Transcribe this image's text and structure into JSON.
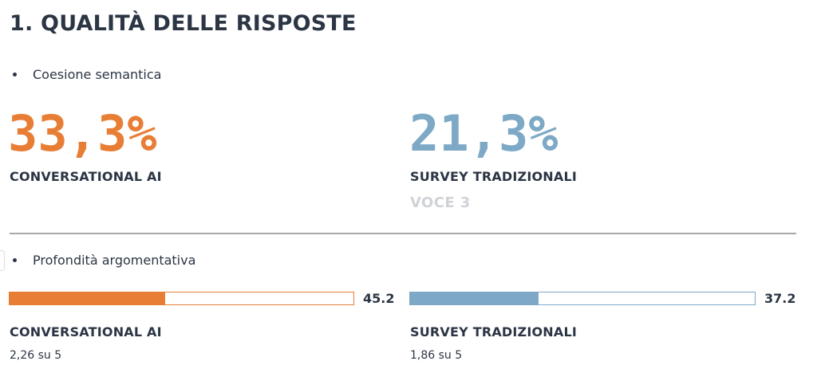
{
  "title": "1. QUALITÀ DELLE RISPOSTE",
  "colors": {
    "orange": "#e87e35",
    "blue": "#7ea9c6",
    "text": "#2b3544",
    "muted": "#cfd2d6"
  },
  "section1": {
    "bullet": "Coesione semantica",
    "left": {
      "value": "33,3%",
      "label": "CONVERSATIONAL AI"
    },
    "right": {
      "value": "21,3%",
      "label": "SURVEY TRADIZIONALI",
      "extra": "VOCE 3"
    }
  },
  "section2": {
    "bullet": "Profondità argomentativa",
    "left": {
      "bar_value": "45.2",
      "bar_fill_percent": 45.2,
      "label": "CONVERSATIONAL AI",
      "score": "2,26 su 5"
    },
    "right": {
      "bar_value": "37.2",
      "bar_fill_percent": 37.2,
      "label": "SURVEY TRADIZIONALI",
      "score": "1,86 su 5"
    }
  }
}
